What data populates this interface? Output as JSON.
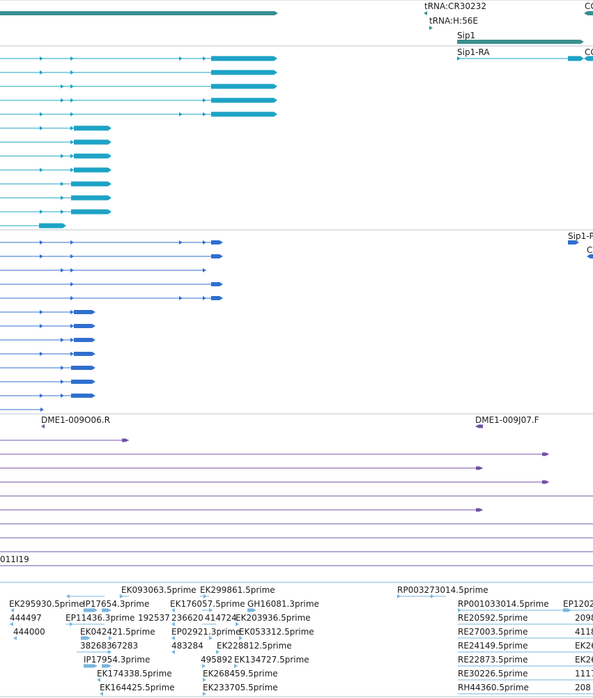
{
  "track_colors": {
    "gene": "#3a8f8f",
    "transcript": "#1ea3c6",
    "cds": "#2f6fce",
    "clone": "#7050a8",
    "est": "#7ab6de",
    "divider": "#b8c4cc"
  },
  "gene_track": {
    "labels": [
      "tRNA:CR30232",
      "CG",
      "tRNA:H:56E",
      "Sip1"
    ]
  },
  "transcript_track": {
    "labels": [
      "Sip1-RA",
      "CG"
    ]
  },
  "cds_track": {
    "labels": [
      "Sip1-P",
      "C"
    ]
  },
  "clone_track": {
    "labels": [
      "DME1-009O06.R",
      "DME1-009J07.F",
      "011I19"
    ]
  },
  "est_track": {
    "labels": [
      "EK093063.5prime",
      "EK299861.5prime",
      "RP003273014.5prime",
      "EK295930.5prime",
      "IP17654.3prime",
      "EK176057.5prime",
      "GH16081.3prime",
      "RP001033014.5prime",
      "EP1202",
      "444497",
      "EP11436.3prime",
      "192537",
      "236620",
      "414724",
      "EK203936.5prime",
      "RE20592.5prime",
      "2098",
      "444000",
      "EK042421.5prime",
      "EP02921.3prime",
      "EK053312.5prime",
      "RE27003.5prime",
      "4118",
      "382683",
      "67283",
      "483284",
      "EK228812.5prime",
      "RE24149.5prime",
      "EK26",
      "IP17954.3prime",
      "495892",
      "EK134727.5prime",
      "RE22873.5prime",
      "EK26",
      "EK174338.5prime",
      "EK268459.5prime",
      "RE30226.5prime",
      "1117",
      "EK164425.5prime",
      "EK233705.5prime",
      "RH44360.5prime",
      "208"
    ]
  }
}
